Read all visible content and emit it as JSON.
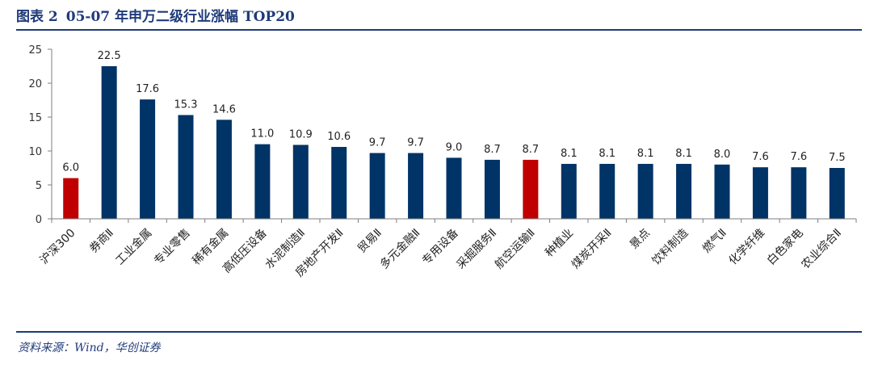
{
  "header": {
    "figure_label": "图表 2",
    "title": "05-07 年申万二级行业涨幅 TOP20"
  },
  "footer": {
    "source": "资料来源：Wind，华创证券"
  },
  "colors": {
    "primary": "#003366",
    "highlight": "#c00000",
    "rule": "#1f3a7a"
  },
  "chart_data": {
    "type": "bar",
    "title": "",
    "xlabel": "",
    "ylabel": "",
    "ylim": [
      0,
      25
    ],
    "yticks": [
      0,
      5,
      10,
      15,
      20,
      25
    ],
    "grid": false,
    "legend": "none",
    "categories": [
      "沪深300",
      "券商Ⅱ",
      "工业金属",
      "专业零售",
      "稀有金属",
      "高低压设备",
      "水泥制造Ⅱ",
      "房地产开发Ⅱ",
      "贸易Ⅱ",
      "多元金融Ⅱ",
      "专用设备",
      "采掘服务Ⅱ",
      "航空运输Ⅱ",
      "种植业",
      "煤炭开采Ⅱ",
      "景点",
      "饮料制造",
      "燃气Ⅱ",
      "化学纤维",
      "白色家电",
      "农业综合Ⅱ"
    ],
    "values": [
      6.0,
      22.5,
      17.6,
      15.3,
      14.6,
      11.0,
      10.9,
      10.6,
      9.7,
      9.7,
      9.0,
      8.7,
      8.7,
      8.1,
      8.1,
      8.1,
      8.1,
      8.0,
      7.6,
      7.6,
      7.5
    ],
    "value_labels": [
      "6.0",
      "22.5",
      "17.6",
      "15.3",
      "14.6",
      "11.0",
      "10.9",
      "10.6",
      "9.7",
      "9.7",
      "9.0",
      "8.7",
      "8.7",
      "8.1",
      "8.1",
      "8.1",
      "8.1",
      "8.0",
      "7.6",
      "7.6",
      "7.5"
    ],
    "highlighted_categories": [
      "沪深300",
      "航空运输Ⅱ"
    ]
  }
}
